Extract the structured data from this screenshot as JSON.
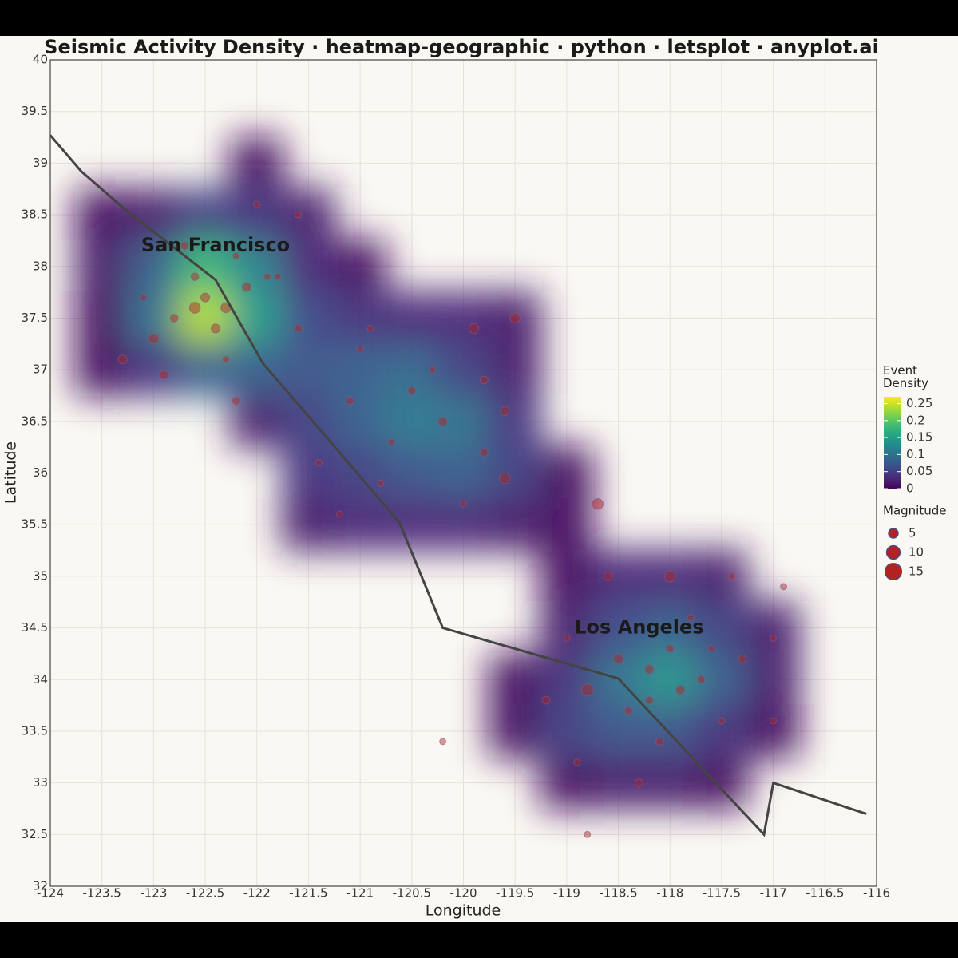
{
  "chart_data": {
    "type": "heatmap-geographic",
    "title": "Seismic Activity Density · heatmap-geographic · python · letsplot · anyplot.ai",
    "x_label": "Longitude",
    "y_label": "Latitude",
    "xlim": [
      -124,
      -116
    ],
    "ylim": [
      32,
      40
    ],
    "xticks": [
      -124,
      -123.5,
      -123,
      -122.5,
      -122,
      -121.5,
      -121,
      -120.5,
      -120,
      -119.5,
      -119,
      -118.5,
      -118,
      -117.5,
      -117,
      -116.5,
      -116
    ],
    "yticks": [
      32,
      32.5,
      33,
      33.5,
      34,
      34.5,
      35,
      35.5,
      36,
      36.5,
      37,
      37.5,
      38,
      38.5,
      39,
      39.5,
      40
    ],
    "grid": true,
    "colormap": "viridis",
    "density": {
      "x": [
        -123.5,
        -123,
        -122.5,
        -122,
        -121.5,
        -121,
        -120.5,
        -120,
        -119.5,
        -119,
        -118.5,
        -118,
        -117.5,
        -117,
        -116.5
      ],
      "y": [
        39,
        38.5,
        38,
        37.5,
        37,
        36.5,
        36,
        35.5,
        35,
        34.5,
        34,
        33.5,
        33,
        32.5
      ],
      "z": [
        [
          0,
          0,
          0,
          0.01,
          0,
          0,
          0,
          0,
          0,
          0,
          0,
          0,
          0,
          0,
          0
        ],
        [
          0.01,
          0.02,
          0.05,
          0.04,
          0.02,
          0,
          0,
          0,
          0,
          0,
          0,
          0,
          0,
          0,
          0
        ],
        [
          0.02,
          0.08,
          0.18,
          0.12,
          0.03,
          0.01,
          0,
          0,
          0,
          0,
          0,
          0,
          0,
          0,
          0
        ],
        [
          0.01,
          0.1,
          0.24,
          0.15,
          0.06,
          0.04,
          0.03,
          0.03,
          0.02,
          0,
          0,
          0,
          0,
          0,
          0
        ],
        [
          0.01,
          0.04,
          0.08,
          0.08,
          0.07,
          0.08,
          0.09,
          0.05,
          0.02,
          0,
          0,
          0,
          0,
          0,
          0
        ],
        [
          0,
          0,
          0,
          0.02,
          0.05,
          0.08,
          0.11,
          0.1,
          0.04,
          0,
          0,
          0,
          0,
          0,
          0
        ],
        [
          0,
          0,
          0,
          0,
          0.04,
          0.05,
          0.07,
          0.08,
          0.05,
          0.01,
          0,
          0,
          0,
          0,
          0
        ],
        [
          0,
          0,
          0,
          0,
          0.02,
          0.03,
          0.03,
          0.03,
          0.02,
          0.01,
          0,
          0,
          0,
          0,
          0
        ],
        [
          0,
          0,
          0,
          0,
          0,
          0,
          0,
          0,
          0,
          0.01,
          0.03,
          0.03,
          0.02,
          0,
          0
        ],
        [
          0,
          0,
          0,
          0,
          0,
          0,
          0,
          0,
          0,
          0.02,
          0.06,
          0.08,
          0.05,
          0.02,
          0
        ],
        [
          0,
          0,
          0,
          0,
          0,
          0,
          0,
          0,
          0.01,
          0.04,
          0.1,
          0.14,
          0.08,
          0.02,
          0
        ],
        [
          0,
          0,
          0,
          0,
          0,
          0,
          0,
          0,
          0.01,
          0.05,
          0.07,
          0.07,
          0.04,
          0.01,
          0
        ],
        [
          0,
          0,
          0,
          0,
          0,
          0,
          0,
          0,
          0,
          0.01,
          0.02,
          0.02,
          0.01,
          0,
          0
        ],
        [
          0,
          0,
          0,
          0,
          0,
          0,
          0,
          0,
          0,
          0,
          0,
          0,
          0,
          0,
          0
        ]
      ]
    },
    "colorbar": {
      "title": "Event Density",
      "lim": [
        0,
        0.27
      ],
      "ticks": [
        0,
        0.05,
        0.1,
        0.15,
        0.2,
        0.25
      ]
    },
    "events": {
      "color": "#b22222",
      "x": [
        -122.5,
        -122.3,
        -122.6,
        -122.1,
        -122.8,
        -122.2,
        -122.7,
        -121.9,
        -122.4,
        -123,
        -122.9,
        -123.3,
        -122,
        -121.6,
        -121.6,
        -122.3,
        -121.8,
        -122.6,
        -123.1,
        -122.2,
        -121,
        -120.5,
        -120.2,
        -120.7,
        -119.9,
        -119.5,
        -119.6,
        -119.6,
        -120.8,
        -121.2,
        -121.1,
        -120.3,
        -119.8,
        -120,
        -120.9,
        -121.4,
        -119.8,
        -118.2,
        -118,
        -118.5,
        -117.7,
        -118.8,
        -118.4,
        -117.8,
        -118,
        -118.6,
        -118.7,
        -118.1,
        -118.3,
        -117.5,
        -117.3,
        -119,
        -118.9,
        -117.6,
        -118.2,
        -117.9,
        -119.2,
        -117,
        -117,
        -116.9,
        -120.2,
        -118.8,
        -117.4
      ],
      "y": [
        37.7,
        37.6,
        37.9,
        37.8,
        37.5,
        38.1,
        38.2,
        37.9,
        37.4,
        37.3,
        36.95,
        37.1,
        38.6,
        38.5,
        37.4,
        37.1,
        37.9,
        37.6,
        37.7,
        36.7,
        37.2,
        36.8,
        36.5,
        36.3,
        37.4,
        37.5,
        36.6,
        35.95,
        35.9,
        35.6,
        36.7,
        37,
        36.2,
        35.7,
        37.4,
        36.1,
        36.9,
        34.1,
        34.3,
        34.2,
        34,
        33.9,
        33.7,
        34.6,
        35,
        35,
        35.7,
        33.4,
        33,
        33.6,
        34.2,
        34.4,
        33.2,
        34.3,
        33.8,
        33.9,
        33.8,
        33.6,
        34.4,
        34.9,
        33.4,
        32.5,
        35
      ],
      "size": [
        4,
        5,
        3,
        4,
        3,
        2,
        3,
        2,
        4,
        5,
        4,
        4,
        2,
        2,
        3,
        2,
        2,
        6,
        2,
        3,
        2,
        3,
        4,
        2,
        5,
        5,
        4,
        6,
        2,
        2,
        3,
        2,
        3,
        2,
        2,
        2,
        3,
        4,
        3,
        5,
        3,
        7,
        3,
        2,
        6,
        4,
        6,
        3,
        3,
        2,
        3,
        2,
        2,
        2,
        3,
        4,
        3,
        2,
        2,
        2,
        2,
        2,
        2
      ]
    },
    "size_legend": {
      "title": "Magnitude",
      "values": [
        5,
        10,
        15
      ]
    },
    "fault_line": {
      "x": [
        -124,
        -123.7,
        -123.25,
        -122.4,
        -121.94,
        -121.2,
        -120.62,
        -120.2,
        -118.5,
        -117.09,
        -117,
        -116.1
      ],
      "y": [
        39.27,
        38.92,
        38.53,
        37.87,
        37.06,
        36.2,
        35.52,
        34.5,
        34.01,
        32.5,
        33,
        32.7
      ]
    },
    "annotations": [
      {
        "text": "San Francisco",
        "x": -122.4,
        "y": 38.2
      },
      {
        "text": "Los Angeles",
        "x": -118.3,
        "y": 34.5
      }
    ]
  }
}
